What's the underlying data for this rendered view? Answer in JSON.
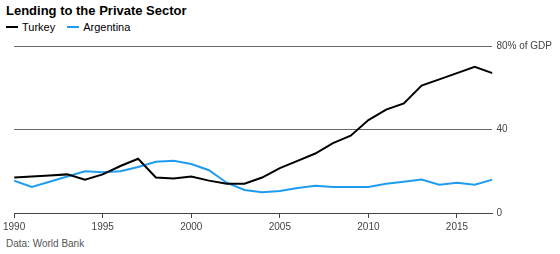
{
  "chart_data": {
    "type": "line",
    "title": "Lending to the Private Sector",
    "source": "Data: World Bank",
    "x": [
      1990,
      1991,
      1992,
      1993,
      1994,
      1995,
      1996,
      1997,
      1998,
      1999,
      2000,
      2001,
      2002,
      2003,
      2004,
      2005,
      2006,
      2007,
      2008,
      2009,
      2010,
      2011,
      2012,
      2013,
      2014,
      2015,
      2016,
      2017
    ],
    "series": [
      {
        "name": "Turkey",
        "color": "#000000",
        "values": [
          17,
          17.5,
          18,
          18.5,
          16,
          18.5,
          22.5,
          26,
          17,
          16.5,
          17.5,
          15.5,
          14,
          14,
          17,
          21.5,
          25,
          28.5,
          33.5,
          37,
          44.5,
          49.5,
          52.5,
          61,
          64,
          67,
          70,
          67
        ]
      },
      {
        "name": "Argentina",
        "color": "#1f9cf0",
        "values": [
          15.5,
          12.5,
          15,
          17.5,
          20,
          19.5,
          20,
          22,
          24.5,
          25,
          23.5,
          20.5,
          14.5,
          11,
          10,
          10.5,
          12,
          13,
          12.5,
          12.5,
          12.5,
          14,
          15,
          16,
          13.5,
          14.5,
          13.5,
          16
        ]
      }
    ],
    "xlim": [
      1990,
      2017
    ],
    "xticks": [
      1990,
      1995,
      2000,
      2005,
      2010,
      2015
    ],
    "ylim": [
      0,
      80
    ],
    "yticks": [
      0,
      40,
      {
        "value": 80,
        "label": "80% of GDP"
      }
    ],
    "grid": true,
    "legend": "top-left"
  }
}
